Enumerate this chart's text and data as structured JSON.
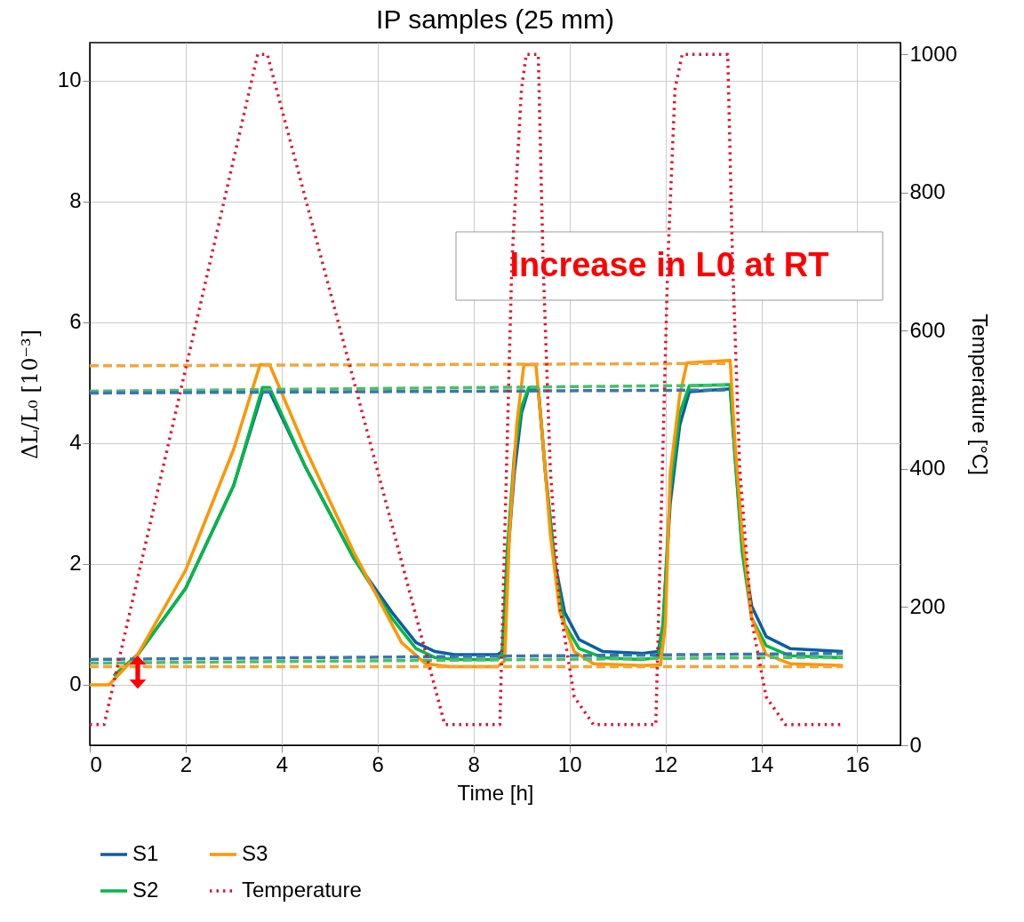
{
  "chart_data": {
    "type": "line",
    "title": "IP samples (25 mm)",
    "xlabel": "Time [h]",
    "ylabel": "ΔL/L₀ [10⁻³]",
    "y2label": "Temperature [°C]",
    "xlim": [
      0,
      16.9
    ],
    "xticks": [
      0,
      2,
      4,
      6,
      8,
      10,
      12,
      14,
      16
    ],
    "ylim": [
      -1,
      10.63
    ],
    "yticks": [
      0,
      2,
      4,
      6,
      8,
      10
    ],
    "y2lim": [
      0,
      1017
    ],
    "y2ticks": [
      0,
      200,
      400,
      600,
      800,
      1000
    ],
    "grid": true,
    "legend": "bottom",
    "marker": "none",
    "annotations": [
      "Increase in L0 at RT"
    ],
    "series": [
      {
        "name": "S1",
        "color": "#0c5da5",
        "line_style": "solid",
        "x": [
          0.5,
          1,
          2,
          3,
          3.6,
          3.75,
          4.5,
          5.5,
          6.3,
          6.8,
          7.2,
          7.6,
          8.5,
          8.6,
          8.7,
          8.85,
          9,
          9.15,
          9.35,
          9.5,
          9.7,
          9.9,
          10.2,
          10.7,
          11.5,
          11.85,
          11.95,
          12.1,
          12.3,
          12.5,
          13.35,
          13.45,
          13.6,
          13.8,
          14.1,
          14.6,
          15.7
        ],
        "values": [
          0.15,
          0.5,
          1.6,
          3.3,
          4.85,
          4.85,
          3.6,
          2.1,
          1.2,
          0.7,
          0.55,
          0.5,
          0.5,
          0.55,
          2.0,
          3.5,
          4.5,
          4.9,
          4.9,
          3.5,
          2.0,
          1.2,
          0.75,
          0.55,
          0.52,
          0.55,
          1.0,
          3.0,
          4.3,
          4.85,
          4.9,
          3.8,
          2.3,
          1.3,
          0.8,
          0.6,
          0.55
        ]
      },
      {
        "name": "S2",
        "color": "#00b945",
        "line_style": "solid",
        "x": [
          0.5,
          1,
          2,
          3,
          3.6,
          3.75,
          4.5,
          5.5,
          6.3,
          6.8,
          7.2,
          7.6,
          8.5,
          8.6,
          8.7,
          8.85,
          9,
          9.15,
          9.35,
          9.5,
          9.7,
          9.9,
          10.2,
          10.7,
          11.5,
          11.85,
          11.95,
          12.1,
          12.3,
          12.5,
          13.35,
          13.45,
          13.6,
          13.8,
          14.1,
          14.6,
          15.7
        ],
        "values": [
          0.15,
          0.5,
          1.6,
          3.3,
          4.92,
          4.92,
          3.6,
          2.1,
          1.1,
          0.6,
          0.45,
          0.42,
          0.42,
          0.5,
          2.2,
          3.8,
          4.6,
          4.92,
          4.92,
          3.5,
          1.9,
          1.0,
          0.6,
          0.45,
          0.42,
          0.45,
          1.0,
          3.2,
          4.5,
          4.95,
          4.97,
          3.8,
          2.2,
          1.1,
          0.65,
          0.48,
          0.45
        ]
      },
      {
        "name": "S3",
        "color": "#ff9500",
        "line_style": "solid",
        "x": [
          0,
          0.4,
          1,
          2,
          3,
          3.55,
          3.75,
          4.5,
          5.5,
          6.5,
          7,
          7.5,
          8.5,
          8.65,
          8.75,
          8.9,
          9.05,
          9.3,
          9.45,
          9.6,
          9.8,
          10.1,
          10.5,
          11.5,
          11.9,
          12,
          12.1,
          12.3,
          12.45,
          13.35,
          13.45,
          13.6,
          13.8,
          14.1,
          14.6,
          15.7
        ],
        "values": [
          0,
          0,
          0.5,
          1.9,
          3.9,
          5.3,
          5.3,
          3.9,
          2.2,
          0.7,
          0.35,
          0.3,
          0.3,
          0.4,
          2.5,
          4.3,
          5.3,
          5.3,
          4.0,
          2.5,
          1.2,
          0.55,
          0.35,
          0.32,
          0.33,
          1.0,
          3.5,
          4.8,
          5.33,
          5.37,
          4.0,
          2.5,
          1.1,
          0.5,
          0.35,
          0.32
        ]
      },
      {
        "name": "Temperature",
        "color": "#e8102a",
        "line_style": "dotted",
        "axis": "y2",
        "x": [
          0,
          0.3,
          3.5,
          3.7,
          7.4,
          8.55,
          8.65,
          8.8,
          9.0,
          9.1,
          9.35,
          9.45,
          9.6,
          9.8,
          10.1,
          10.5,
          11.8,
          11.9,
          12.05,
          12.2,
          12.35,
          13.3,
          13.4,
          13.55,
          13.8,
          14.1,
          14.5,
          15.7
        ],
        "values": [
          30,
          30,
          1000,
          1000,
          30,
          30,
          300,
          700,
          950,
          1000,
          1000,
          700,
          400,
          200,
          70,
          30,
          30,
          300,
          700,
          950,
          1000,
          1000,
          700,
          400,
          180,
          70,
          30,
          30
        ]
      },
      {
        "color": "#f5a53a",
        "line_style": "dashed",
        "x": [
          0,
          13.3
        ],
        "values": [
          5.28,
          5.32
        ]
      },
      {
        "color": "#48c06a",
        "line_style": "dashed",
        "x": [
          0,
          13.3
        ],
        "values": [
          4.86,
          4.96
        ]
      },
      {
        "color": "#3a76b0",
        "line_style": "dashed",
        "x": [
          0,
          13.3
        ],
        "values": [
          4.83,
          4.88
        ]
      },
      {
        "color": "#48c06a",
        "line_style": "dashed",
        "x": [
          0,
          15.7
        ],
        "values": [
          0.36,
          0.46
        ]
      },
      {
        "color": "#f5a53a",
        "line_style": "dashed",
        "x": [
          0,
          15.7
        ],
        "values": [
          0.3,
          0.3
        ]
      },
      {
        "color": "#3a76b0",
        "line_style": "dashed",
        "x": [
          0,
          15.7
        ],
        "values": [
          0.42,
          0.52
        ]
      }
    ]
  }
}
